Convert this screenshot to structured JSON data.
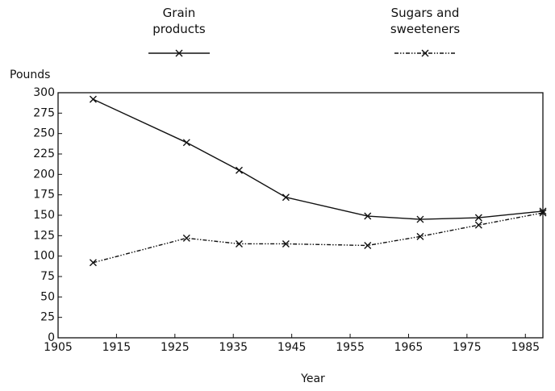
{
  "chart_data": {
    "type": "line",
    "y_label": "Pounds",
    "x_label": "Year",
    "x": [
      1911,
      1927,
      1936,
      1944,
      1958,
      1967,
      1977,
      1988
    ],
    "series": [
      {
        "name": "Grain products",
        "color": "#111111",
        "dash": "none",
        "values": [
          292,
          239,
          205,
          172,
          149,
          145,
          147,
          155
        ]
      },
      {
        "name": "Sugars and sweeteners",
        "color": "#111111",
        "dash": "5 2 1.5 2 1.5 2",
        "values": [
          92,
          122,
          115,
          115,
          113,
          124,
          138,
          153
        ]
      }
    ],
    "xlim": [
      1905,
      1988
    ],
    "xticks": [
      1905,
      1915,
      1925,
      1935,
      1945,
      1955,
      1965,
      1975,
      1985
    ],
    "ylim": [
      0,
      300
    ],
    "yticks": [
      0,
      25,
      50,
      75,
      100,
      125,
      150,
      175,
      200,
      225,
      250,
      275,
      300
    ],
    "marker": "x"
  }
}
